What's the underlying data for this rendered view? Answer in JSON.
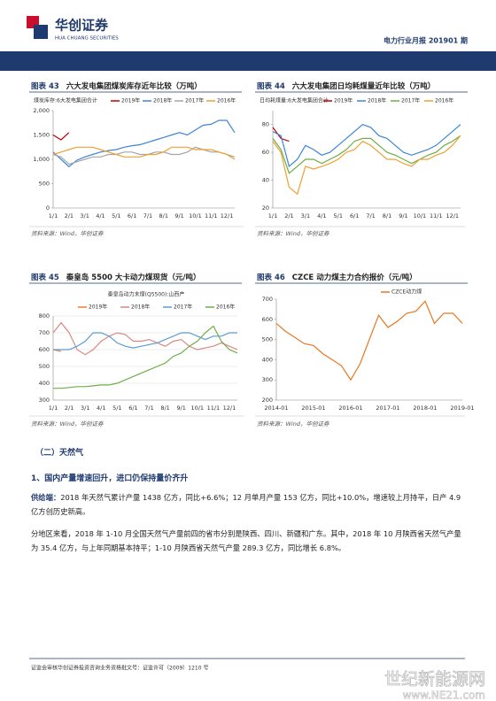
{
  "header": {
    "company": "华创证券",
    "company_en": "HUA CHUANG SECURITIES",
    "report": "电力行业月报 201901 期"
  },
  "chart_data": [
    {
      "type": "line",
      "label": "图表 43",
      "title": "六大发电集团煤炭库存近年比较（万吨）",
      "subtitle": "煤炭库存:6大发电集团合计",
      "source": "资料来源：Wind，华创证券",
      "categories": [
        "1/1",
        null,
        "2/1",
        null,
        "3/1",
        null,
        "4/1",
        null,
        "5/1",
        null,
        "6/1",
        null,
        "7/1",
        null,
        "8/1",
        null,
        "9/1",
        null,
        "10/1",
        null,
        "11/1",
        null,
        "12/1",
        null
      ],
      "series": [
        {
          "name": "2019年",
          "color": "#c00000",
          "values": [
            1500,
            1400,
            1550,
            null,
            null,
            null,
            null,
            null,
            null,
            null,
            null,
            null,
            null,
            null,
            null,
            null,
            null,
            null,
            null,
            null,
            null,
            null,
            null,
            null
          ]
        },
        {
          "name": "2018年",
          "color": "#3d85d6",
          "values": [
            1150,
            1000,
            850,
            980,
            1050,
            1100,
            1150,
            1180,
            1200,
            1250,
            1280,
            1300,
            1350,
            1400,
            1450,
            1500,
            1550,
            1500,
            1600,
            1700,
            1720,
            1800,
            1800,
            1550
          ]
        },
        {
          "name": "2017年",
          "color": "#a5a5a5",
          "values": [
            1100,
            1050,
            900,
            950,
            1000,
            1050,
            1050,
            1100,
            1100,
            1150,
            1150,
            1100,
            1100,
            1150,
            1150,
            1100,
            1100,
            1150,
            1250,
            1200,
            1150,
            1150,
            1100,
            1050
          ]
        },
        {
          "name": "2016年",
          "color": "#f0a030",
          "values": [
            1100,
            1150,
            1200,
            1250,
            1250,
            1250,
            1200,
            1150,
            1100,
            1050,
            1050,
            1050,
            1100,
            1100,
            1150,
            1250,
            1250,
            1250,
            1200,
            1200,
            1200,
            1150,
            1100,
            1000
          ]
        }
      ],
      "ylim": [
        0,
        2000
      ],
      "yticks": [
        0,
        500,
        {
          "value": 1000,
          "label": "1,000"
        },
        {
          "value": 1500,
          "label": "1,500"
        },
        {
          "value": 2000,
          "label": "2,000"
        }
      ],
      "grid": false
    },
    {
      "type": "line",
      "label": "图表 44",
      "title": "六大发电集团日均耗煤量近年比较（万吨）",
      "subtitle": "日均耗煤量:6大发电集团合计",
      "source": "资料来源：Wind，华创证券",
      "categories": [
        "1/1",
        null,
        "2/1",
        null,
        "3/1",
        null,
        "4/1",
        null,
        "5/1",
        null,
        "6/1",
        null,
        "7/1",
        null,
        "8/1",
        null,
        "9/1",
        null,
        "10/1",
        null,
        "11/1",
        null,
        "12/1",
        null
      ],
      "series": [
        {
          "name": "2019年",
          "color": "#c00000",
          "values": [
            78,
            70,
            68,
            null,
            null,
            null,
            null,
            null,
            null,
            null,
            null,
            null,
            null,
            null,
            null,
            null,
            null,
            null,
            null,
            null,
            null,
            null,
            null,
            null
          ]
        },
        {
          "name": "2018年",
          "color": "#3d85d6",
          "values": [
            75,
            72,
            50,
            55,
            65,
            62,
            58,
            60,
            65,
            70,
            75,
            80,
            78,
            72,
            70,
            65,
            60,
            58,
            60,
            62,
            65,
            70,
            75,
            80
          ]
        },
        {
          "name": "2017年",
          "color": "#70ad47",
          "values": [
            70,
            62,
            45,
            50,
            55,
            55,
            52,
            55,
            58,
            62,
            68,
            70,
            70,
            65,
            60,
            58,
            55,
            52,
            55,
            58,
            60,
            65,
            68,
            72
          ]
        },
        {
          "name": "2016年",
          "color": "#f0a030",
          "values": [
            68,
            60,
            35,
            30,
            50,
            48,
            50,
            52,
            55,
            60,
            62,
            68,
            65,
            60,
            55,
            55,
            52,
            50,
            55,
            55,
            58,
            60,
            65,
            72
          ]
        }
      ],
      "ylim": [
        20,
        90
      ],
      "yticks": [
        20,
        40,
        60,
        80
      ],
      "grid": false
    },
    {
      "type": "line",
      "label": "图表 45",
      "title": "秦皇岛 5500 大卡动力煤现货（元/吨）",
      "subtitle": "秦皇岛动力末煤(Q5500):山西产",
      "source": "资料来源：Wind，华创证券",
      "categories": [
        "1/1",
        null,
        "2/1",
        null,
        "3/1",
        null,
        "4/1",
        null,
        "5/1",
        null,
        "6/1",
        null,
        "7/1",
        null,
        "8/1",
        null,
        "9/1",
        null,
        "10/1",
        null,
        "11/1",
        null,
        "12/1",
        null
      ],
      "series": [
        {
          "name": "2019年",
          "color": "#ed7d31",
          "values": [
            600,
            590,
            null,
            null,
            null,
            null,
            null,
            null,
            null,
            null,
            null,
            null,
            null,
            null,
            null,
            null,
            null,
            null,
            null,
            null,
            null,
            null,
            null,
            null
          ]
        },
        {
          "name": "2018年",
          "color": "#d98880",
          "values": [
            700,
            760,
            700,
            600,
            570,
            600,
            650,
            680,
            700,
            690,
            650,
            650,
            660,
            640,
            620,
            650,
            660,
            620,
            600,
            610,
            620,
            640,
            620,
            600
          ]
        },
        {
          "name": "2017年",
          "color": "#5b9bd5",
          "values": [
            600,
            600,
            600,
            620,
            650,
            700,
            700,
            680,
            640,
            620,
            610,
            620,
            630,
            640,
            660,
            680,
            700,
            700,
            680,
            660,
            680,
            680,
            700,
            700
          ]
        },
        {
          "name": "2016年",
          "color": "#70ad47",
          "values": [
            370,
            370,
            375,
            380,
            380,
            385,
            390,
            390,
            400,
            420,
            440,
            460,
            480,
            500,
            520,
            560,
            580,
            620,
            650,
            700,
            740,
            650,
            600,
            580
          ]
        }
      ],
      "ylim": [
        300,
        800
      ],
      "yticks": [
        300,
        400,
        500,
        600,
        700,
        800
      ],
      "grid": true
    },
    {
      "type": "line",
      "label": "图表 46",
      "title": "CZCE 动力煤主力合约报价（元/吨）",
      "source": "资料来源：Wind，华创证券",
      "categories": [
        "2014-01",
        null,
        null,
        null,
        "2015-01",
        null,
        null,
        null,
        "2016-01",
        null,
        null,
        null,
        "2017-01",
        null,
        null,
        null,
        "2018-01",
        null,
        null,
        null,
        "2019-01"
      ],
      "series": [
        {
          "name": "CZCE动力煤",
          "color": "#e87722",
          "values": [
            580,
            540,
            510,
            480,
            470,
            430,
            400,
            370,
            300,
            380,
            500,
            620,
            560,
            590,
            630,
            640,
            690,
            580,
            630,
            630,
            580
          ]
        }
      ],
      "ylim": [
        200,
        700
      ],
      "yticks": [
        200,
        300,
        400,
        500,
        600,
        700
      ],
      "grid": false
    }
  ],
  "section": {
    "heading": "（二）天然气",
    "subheading": "1、国内产量增速回升，进口仍保持量价齐升",
    "paragraphs": [
      {
        "lead": "供给端：",
        "text": "2018 年天然气累计产量 1438 亿方，同比+6.6%；12 月单月产量 153 亿方，同比+10.0%，增速较上月持平，日产 4.9 亿方创历史新高。"
      },
      {
        "text": "分地区来看，2018 年 1-10 月全国天然气产量前四的省市分别是陕西、四川、新疆和广东。其中，2018 年 10 月陕西省天然气产量为 35.4 亿方，与上年同期基本持平；1-10 月陕西省天然气产量 289.3 亿方，同比增长 6.8%。"
      }
    ]
  },
  "footer": "证监会审核华创证券投资咨询业务资格批文号：证监许可（2009）1210 号",
  "watermark": {
    "name": "世纪新能源网",
    "url": "www.NE21.com"
  }
}
